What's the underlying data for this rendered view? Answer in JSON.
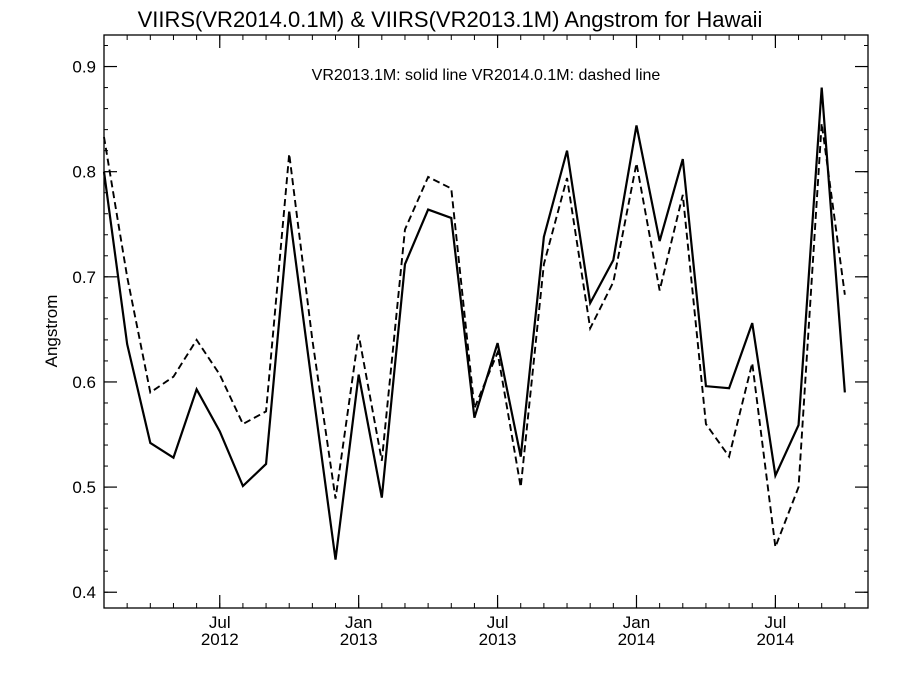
{
  "chart_data": {
    "type": "line",
    "title": "VIIRS(VR2014.0.1M) & VIIRS(VR2013.1M)  Angstrom for Hawaii",
    "ylabel": "Angstrom",
    "xlabel": "",
    "legend_text": "VR2013.1M: solid line   VR2014.0.1M: dashed line",
    "x_start": "2012-02",
    "x_end": "2014-11",
    "xlim": [
      "2012-02",
      "2014-11"
    ],
    "ylim": [
      0.385,
      0.93
    ],
    "yticks": [
      0.4,
      0.5,
      0.6,
      0.7,
      0.8,
      0.9
    ],
    "ytick_labels": [
      "0.4",
      "0.5",
      "0.6",
      "0.7",
      "0.8",
      "0.9"
    ],
    "xticks": [
      {
        "date": "2012-07",
        "month": "Jul",
        "year": "2012"
      },
      {
        "date": "2013-01",
        "month": "Jan",
        "year": "2013"
      },
      {
        "date": "2013-07",
        "month": "Jul",
        "year": "2013"
      },
      {
        "date": "2014-01",
        "month": "Jan",
        "year": "2014"
      },
      {
        "date": "2014-07",
        "month": "Jul",
        "year": "2014"
      }
    ],
    "x": [
      "2012-02",
      "2012-03",
      "2012-04",
      "2012-05",
      "2012-06",
      "2012-07",
      "2012-08",
      "2012-09",
      "2012-10",
      "2012-11",
      "2012-12",
      "2013-01",
      "2013-02",
      "2013-03",
      "2013-04",
      "2013-05",
      "2013-06",
      "2013-07",
      "2013-08",
      "2013-09",
      "2013-10",
      "2013-11",
      "2013-12",
      "2014-01",
      "2014-02",
      "2014-03",
      "2014-04",
      "2014-05",
      "2014-06",
      "2014-07",
      "2014-08",
      "2014-09",
      "2014-10"
    ],
    "series": [
      {
        "name": "VR2013.1M",
        "style": "solid",
        "values": [
          0.8,
          0.636,
          0.542,
          0.528,
          0.593,
          0.553,
          0.501,
          0.522,
          0.762,
          0.595,
          0.431,
          0.607,
          0.49,
          0.712,
          0.764,
          0.756,
          0.566,
          0.637,
          0.529,
          0.738,
          0.82,
          0.675,
          0.716,
          0.844,
          0.734,
          0.812,
          0.596,
          0.594,
          0.656,
          0.511,
          0.559,
          0.88,
          0.59
        ]
      },
      {
        "name": "VR2014.0.1M",
        "style": "dashed",
        "values": [
          0.833,
          0.7,
          0.59,
          0.605,
          0.64,
          0.607,
          0.56,
          0.572,
          0.817,
          0.64,
          0.489,
          0.645,
          0.525,
          0.745,
          0.795,
          0.784,
          0.575,
          0.628,
          0.5,
          0.712,
          0.794,
          0.651,
          0.695,
          0.808,
          0.687,
          0.778,
          0.56,
          0.529,
          0.618,
          0.443,
          0.5,
          0.846,
          0.683
        ]
      }
    ],
    "line_color": "#000000",
    "grid": false
  }
}
